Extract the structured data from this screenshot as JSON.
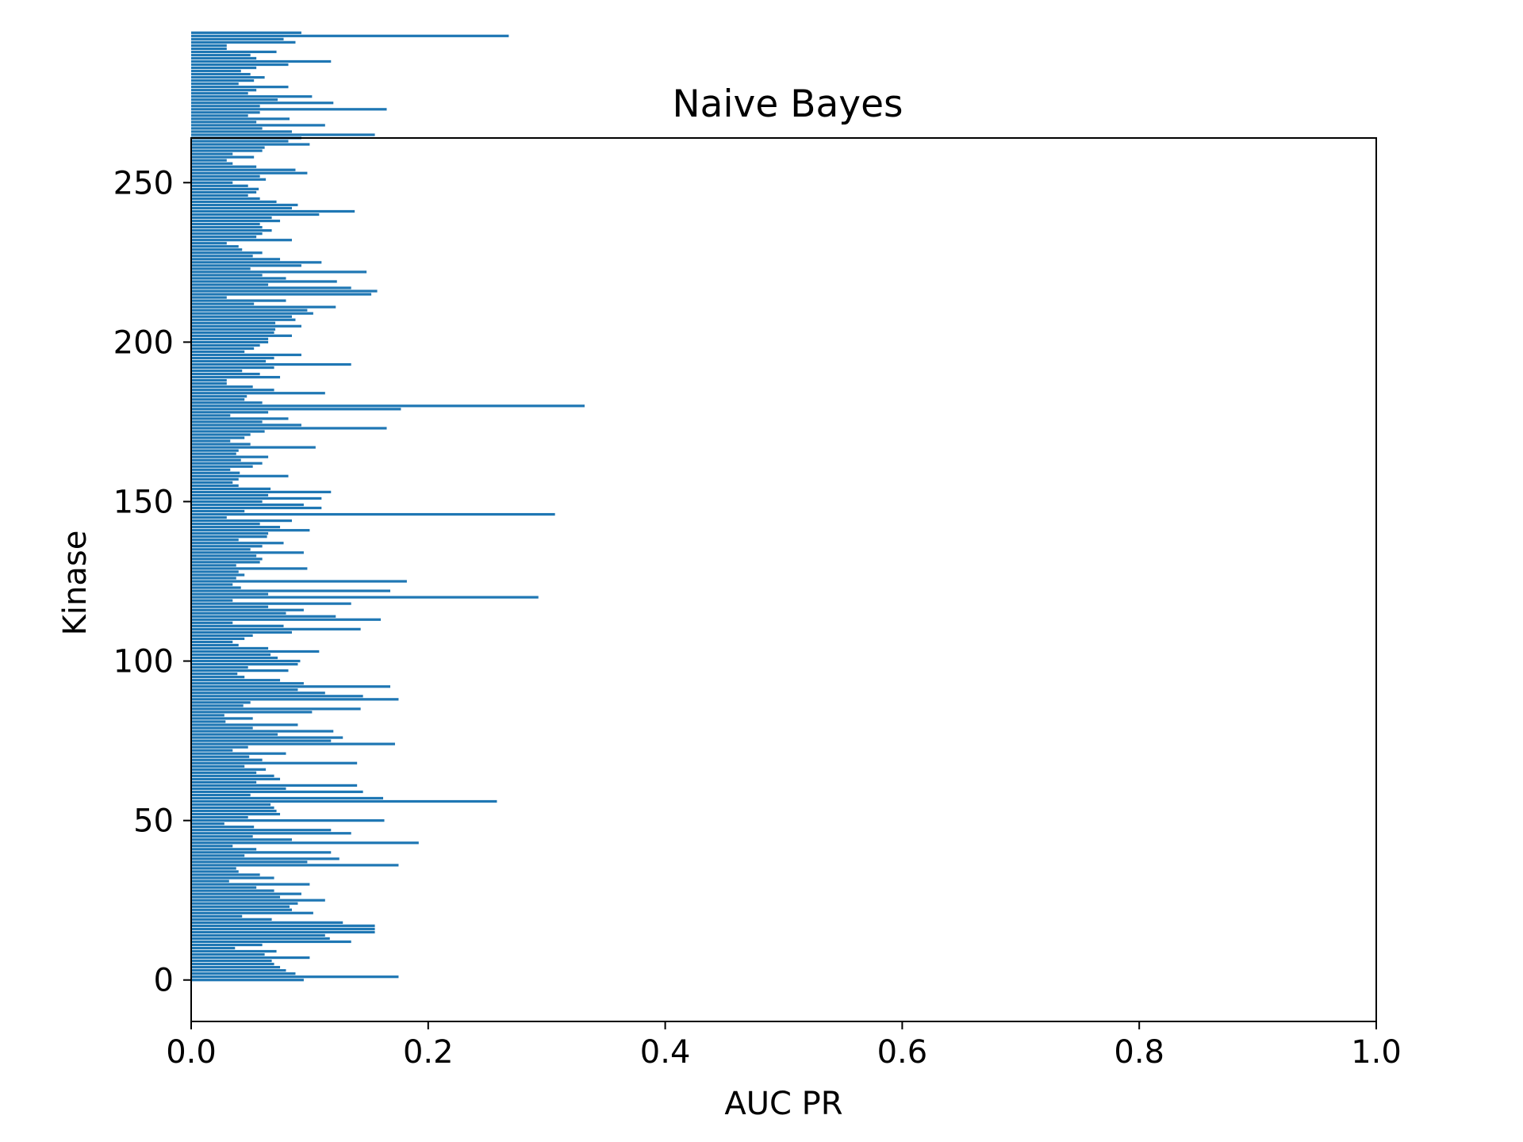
{
  "chart_data": {
    "type": "bar",
    "orientation": "horizontal",
    "title": "Naive Bayes",
    "xlabel": "AUC PR",
    "ylabel": "Kinase",
    "xlim": [
      0.0,
      1.0
    ],
    "ylim": [
      -13,
      264
    ],
    "xticks": [
      "0.0",
      "0.2",
      "0.4",
      "0.6",
      "0.8",
      "1.0"
    ],
    "yticks": [
      "0",
      "50",
      "100",
      "150",
      "200",
      "250"
    ],
    "grid": false,
    "color": "#1f77b4",
    "values": [
      0.095,
      0.175,
      0.088,
      0.08,
      0.075,
      0.07,
      0.068,
      0.1,
      0.062,
      0.072,
      0.037,
      0.06,
      0.135,
      0.117,
      0.113,
      0.155,
      0.155,
      0.155,
      0.128,
      0.068,
      0.043,
      0.103,
      0.085,
      0.083,
      0.09,
      0.113,
      0.075,
      0.093,
      0.07,
      0.055,
      0.1,
      0.032,
      0.07,
      0.058,
      0.04,
      0.038,
      0.175,
      0.098,
      0.125,
      0.045,
      0.118,
      0.055,
      0.035,
      0.192,
      0.085,
      0.052,
      0.135,
      0.118,
      0.053,
      0.028,
      0.163,
      0.048,
      0.075,
      0.072,
      0.07,
      0.067,
      0.258,
      0.162,
      0.05,
      0.145,
      0.08,
      0.14,
      0.055,
      0.075,
      0.07,
      0.055,
      0.063,
      0.045,
      0.14,
      0.06,
      0.049,
      0.08,
      0.035,
      0.048,
      0.172,
      0.118,
      0.128,
      0.073,
      0.12,
      0.052,
      0.09,
      0.029,
      0.052,
      0.028,
      0.102,
      0.143,
      0.044,
      0.05,
      0.175,
      0.145,
      0.113,
      0.09,
      0.168,
      0.095,
      0.075,
      0.045,
      0.039,
      0.082,
      0.048,
      0.09,
      0.092,
      0.073,
      0.067,
      0.108,
      0.065,
      0.04,
      0.035,
      0.045,
      0.052,
      0.085,
      0.143,
      0.078,
      0.035,
      0.16,
      0.122,
      0.08,
      0.095,
      0.065,
      0.135,
      0.035,
      0.293,
      0.065,
      0.168,
      0.042,
      0.035,
      0.182,
      0.038,
      0.045,
      0.04,
      0.098,
      0.038,
      0.058,
      0.06,
      0.055,
      0.095,
      0.05,
      0.06,
      0.078,
      0.04,
      0.064,
      0.065,
      0.1,
      0.075,
      0.058,
      0.085,
      0.03,
      0.307,
      0.045,
      0.11,
      0.095,
      0.06,
      0.11,
      0.065,
      0.118,
      0.067,
      0.04,
      0.035,
      0.04,
      0.082,
      0.041,
      0.033,
      0.052,
      0.06,
      0.042,
      0.065,
      0.038,
      0.04,
      0.105,
      0.05,
      0.033,
      0.045,
      0.05,
      0.062,
      0.165,
      0.093,
      0.06,
      0.082,
      0.033,
      0.065,
      0.177,
      0.332,
      0.06,
      0.045,
      0.047,
      0.113,
      0.07,
      0.052,
      0.03,
      0.03,
      0.075,
      0.058,
      0.043,
      0.07,
      0.135,
      0.063,
      0.07,
      0.093,
      0.045,
      0.053,
      0.058,
      0.065,
      0.065,
      0.085,
      0.07,
      0.071,
      0.093,
      0.071,
      0.088,
      0.085,
      0.103,
      0.098,
      0.122,
      0.053,
      0.08,
      0.03,
      0.152,
      0.157,
      0.135,
      0.065,
      0.123,
      0.08,
      0.06,
      0.148,
      0.05,
      0.093,
      0.11,
      0.075,
      0.052,
      0.06,
      0.043,
      0.04,
      0.03,
      0.085,
      0.055,
      0.06,
      0.068,
      0.06,
      0.058,
      0.075,
      0.068,
      0.108,
      0.138,
      0.085,
      0.09,
      0.072,
      0.058,
      0.048,
      0.055,
      0.057,
      0.048,
      0.035,
      0.063,
      0.058,
      0.098,
      0.088,
      0.055,
      0.035,
      0.03,
      0.053,
      0.035,
      0.06,
      0.062,
      0.1,
      0.082,
      0.093,
      0.155,
      0.085,
      0.06,
      0.113,
      0.055,
      0.083,
      0.048,
      0.058,
      0.165,
      0.058,
      0.12,
      0.073,
      0.102,
      0.048,
      0.055,
      0.082,
      0.04,
      0.053,
      0.062,
      0.05,
      0.042,
      0.055,
      0.082,
      0.118,
      0.055,
      0.05,
      0.072,
      0.03,
      0.03,
      0.088,
      0.078,
      0.268,
      0.093
    ]
  }
}
